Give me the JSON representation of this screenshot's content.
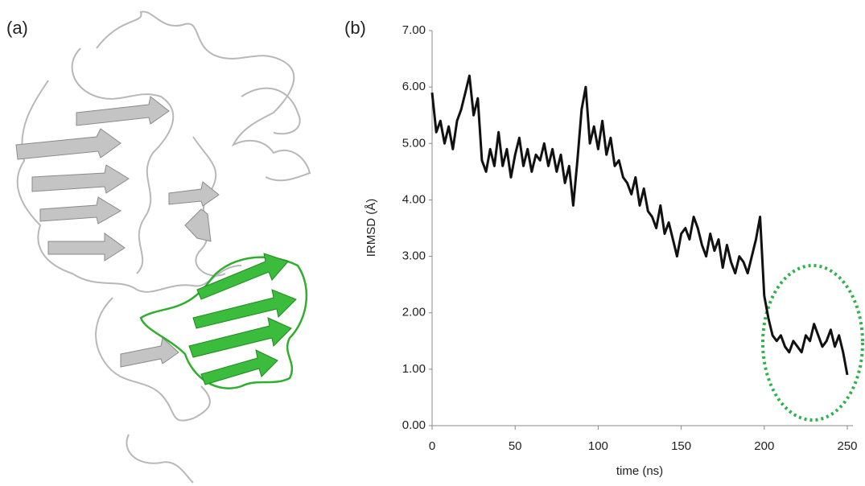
{
  "panel_labels": [
    "(a)",
    "(b)"
  ],
  "chart_data": {
    "type": "line",
    "x_label": "time (ns)",
    "y_label": "IRMSD (Å)",
    "x": [
      0,
      2.5,
      5,
      7.5,
      10,
      12.5,
      15,
      17.5,
      20,
      22.5,
      25,
      27.5,
      30,
      32.5,
      35,
      37.5,
      40,
      42.5,
      45,
      47.5,
      50,
      52.5,
      55,
      57.5,
      60,
      62.5,
      65,
      67.5,
      70,
      72.5,
      75,
      77.5,
      80,
      82.5,
      85,
      87.5,
      90,
      92.5,
      95,
      97.5,
      100,
      102.5,
      105,
      107.5,
      110,
      112.5,
      115,
      117.5,
      120,
      122.5,
      125,
      127.5,
      130,
      132.5,
      135,
      137.5,
      140,
      142.5,
      145,
      147.5,
      150,
      152.5,
      155,
      157.5,
      160,
      162.5,
      165,
      167.5,
      170,
      172.5,
      175,
      177.5,
      180,
      182.5,
      185,
      187.5,
      190,
      192.5,
      195,
      197.5,
      200,
      202.5,
      205,
      207.5,
      210,
      212.5,
      215,
      217.5,
      220,
      222.5,
      225,
      227.5,
      230,
      232.5,
      235,
      237.5,
      240,
      242.5,
      245,
      247.5,
      250
    ],
    "series": [
      {
        "color": "#111111",
        "values": [
          5.9,
          5.2,
          5.4,
          5.0,
          5.3,
          4.9,
          5.4,
          5.6,
          5.9,
          6.2,
          5.5,
          5.8,
          4.7,
          4.5,
          4.9,
          4.6,
          5.2,
          4.6,
          4.9,
          4.4,
          4.8,
          5.1,
          4.6,
          4.9,
          4.5,
          4.8,
          4.7,
          5.0,
          4.6,
          4.9,
          4.5,
          4.8,
          4.3,
          4.6,
          3.9,
          4.7,
          5.6,
          6.0,
          5.0,
          5.3,
          4.9,
          5.4,
          4.8,
          5.1,
          4.6,
          4.7,
          4.4,
          4.3,
          4.1,
          4.4,
          3.9,
          4.2,
          3.8,
          3.7,
          3.5,
          3.9,
          3.4,
          3.6,
          3.3,
          3.0,
          3.4,
          3.5,
          3.3,
          3.7,
          3.5,
          3.2,
          3.0,
          3.4,
          3.1,
          3.3,
          2.8,
          3.2,
          2.9,
          2.7,
          3.0,
          2.9,
          2.7,
          3.0,
          3.3,
          3.7,
          2.3,
          1.9,
          1.6,
          1.5,
          1.6,
          1.4,
          1.3,
          1.5,
          1.4,
          1.3,
          1.6,
          1.5,
          1.8,
          1.6,
          1.4,
          1.5,
          1.7,
          1.4,
          1.6,
          1.3,
          0.9
        ]
      }
    ],
    "xlim": [
      0,
      250
    ],
    "xticks": [
      0,
      50,
      100,
      150,
      200,
      250
    ],
    "ylim": [
      0,
      7
    ],
    "yticks": [
      {
        "value": 0,
        "label": "0.00"
      },
      {
        "value": 1,
        "label": "1.00"
      },
      {
        "value": 2,
        "label": "2.00"
      },
      {
        "value": 3,
        "label": "3.00"
      },
      {
        "value": 4,
        "label": "4.00"
      },
      {
        "value": 5,
        "label": "5.00"
      },
      {
        "value": 6,
        "label": "6.00"
      },
      {
        "value": 7,
        "label": "7.00"
      }
    ],
    "grid": false
  }
}
